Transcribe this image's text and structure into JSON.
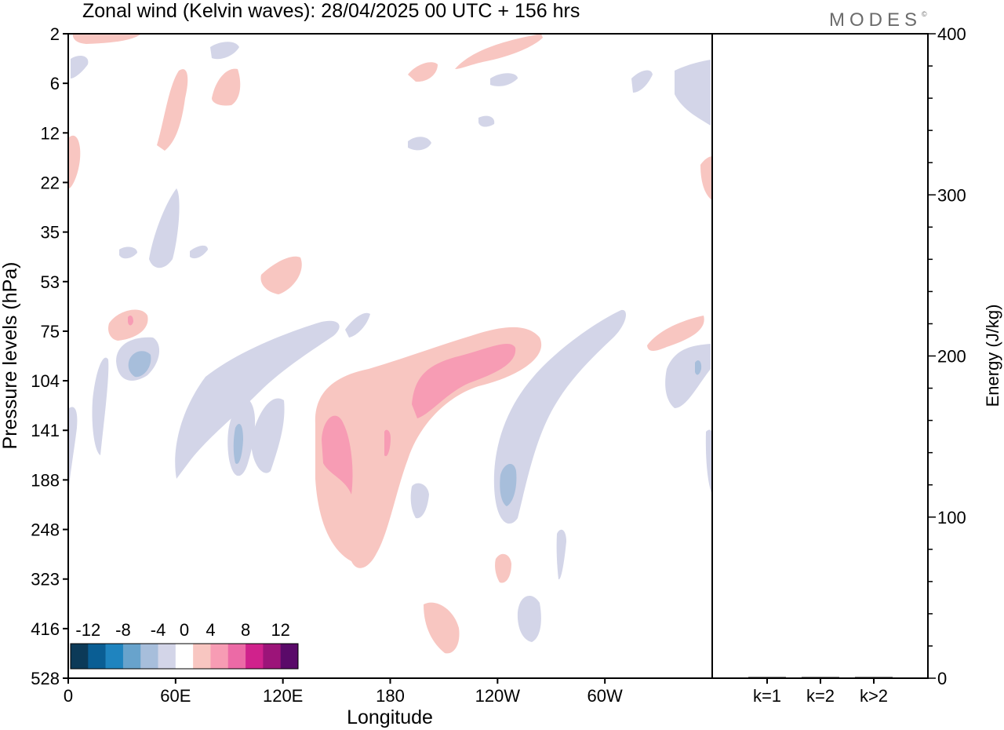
{
  "title": "Zonal wind (Kelvin waves):  28/04/2025  00 UTC  + 156 hrs",
  "brand": "MODES",
  "brand_mark": "©",
  "chart_data": [
    {
      "type": "heatmap",
      "subtype": "filled-contour (longitude-pressure section)",
      "xlabel": "Longitude",
      "ylabel": "Pressure levels (hPa)",
      "x_ticks": [
        "0",
        "60E",
        "120E",
        "180",
        "120W",
        "60W"
      ],
      "x_tick_degrees_east": [
        0,
        60,
        120,
        180,
        240,
        300
      ],
      "xlim_degrees_east": [
        0,
        360
      ],
      "y_ticks": [
        "2",
        "6",
        "12",
        "22",
        "35",
        "53",
        "75",
        "104",
        "141",
        "188",
        "248",
        "323",
        "416",
        "528"
      ],
      "y_axis_direction": "pressure increases downward",
      "colorbar": {
        "tick_labels": [
          "-12",
          "-8",
          "-4",
          "0",
          "4",
          "8",
          "12"
        ],
        "levels": [
          -14,
          -12,
          -10,
          -8,
          -6,
          -4,
          -2,
          2,
          4,
          6,
          8,
          10,
          12,
          14
        ],
        "colors": [
          "#0c3a58",
          "#0a5e94",
          "#1f84bf",
          "#68a3cc",
          "#a7bedb",
          "#d3d5e8",
          "#ffffff",
          "#f8c6c1",
          "#f79cb4",
          "#ec6aa6",
          "#d0228c",
          "#9c1479",
          "#5a0a69"
        ]
      },
      "features": [
        {
          "sign": "positive",
          "max_level": 8,
          "lon_center": 160,
          "pressure_range_hPa": [
            75,
            323
          ],
          "note": "main westerly anomaly tilting eastward with height"
        },
        {
          "sign": "positive",
          "max_level": 6,
          "lon_center": 220,
          "pressure_range_hPa": [
            75,
            141
          ]
        },
        {
          "sign": "negative",
          "max_level": -4,
          "lon_center": 275,
          "pressure_range_hPa": [
            75,
            248
          ]
        },
        {
          "sign": "negative",
          "max_level": -4,
          "lon_center": 40,
          "pressure_range_hPa": [
            75,
            141
          ]
        },
        {
          "sign": "negative",
          "max_level": -4,
          "lon_center": 95,
          "pressure_range_hPa": [
            104,
            188
          ]
        }
      ]
    },
    {
      "type": "bar",
      "categories": [
        "k=1",
        "k=2",
        "k>2"
      ],
      "values": [
        0,
        0,
        0
      ],
      "ylabel": "Energy (J/kg)",
      "ylim": [
        0,
        400
      ],
      "y_ticks": [
        0,
        100,
        200,
        300,
        400
      ],
      "grid": false
    }
  ]
}
